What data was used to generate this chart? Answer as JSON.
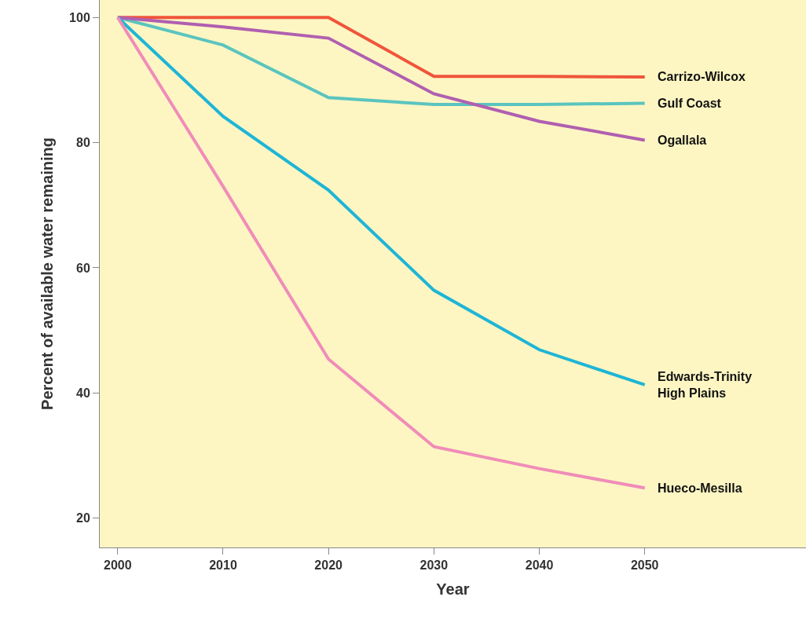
{
  "chart_data": {
    "type": "line",
    "xlabel": "Year",
    "ylabel": "Percent of available water remaining",
    "x": [
      2000,
      2010,
      2020,
      2030,
      2040,
      2050
    ],
    "series": [
      {
        "name": "Carrizo-Wilcox",
        "color": "#f0553a",
        "values": [
          100,
          100,
          100,
          90.6,
          90.6,
          90.5
        ]
      },
      {
        "name": "Gulf Coast",
        "color": "#5bc4bf",
        "values": [
          100,
          95.6,
          87.2,
          86.1,
          86.1,
          86.3
        ]
      },
      {
        "name": "Ogallala",
        "color": "#b05fb0",
        "values": [
          100,
          98.5,
          96.7,
          87.8,
          83.4,
          80.4
        ]
      },
      {
        "name": "Edwards-Trinity\nHigh Plains",
        "color": "#1fb5d6",
        "values": [
          100,
          84.2,
          72.4,
          56.4,
          46.9,
          41.3
        ]
      },
      {
        "name": "Hueco-Mesilla",
        "color": "#f08cb8",
        "values": [
          100,
          73,
          45.4,
          31.4,
          27.9,
          24.8
        ]
      }
    ],
    "xlim": [
      1998.3,
      2065.3
    ],
    "ylim": [
      15.3,
      102.8
    ],
    "xticks": [
      2000,
      2010,
      2020,
      2030,
      2040,
      2050
    ],
    "yticks": [
      20,
      40,
      60,
      80,
      100
    ],
    "grid": false,
    "legend": false,
    "marker": "none",
    "line_style": "solid"
  }
}
